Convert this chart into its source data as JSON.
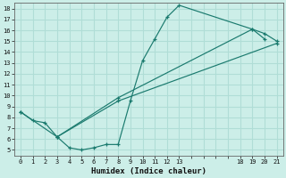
{
  "xlabel": "Humidex (Indice chaleur)",
  "bg_color": "#cceee8",
  "grid_color": "#b0ddd6",
  "line_color": "#1a7a6e",
  "xlim": [
    -0.5,
    21.5
  ],
  "ylim": [
    4.5,
    18.5
  ],
  "xtick_labels": [
    "0",
    "1",
    "2",
    "3",
    "4",
    "5",
    "6",
    "7",
    "8",
    "9",
    "10",
    "11",
    "12",
    "13",
    "",
    "",
    "",
    "",
    "18",
    "19",
    "20",
    "21"
  ],
  "xtick_pos": [
    0,
    1,
    2,
    3,
    4,
    5,
    6,
    7,
    8,
    9,
    10,
    11,
    12,
    13,
    14,
    15,
    16,
    17,
    18,
    19,
    20,
    21
  ],
  "ytick_pos": [
    5,
    6,
    7,
    8,
    9,
    10,
    11,
    12,
    13,
    14,
    15,
    16,
    17,
    18
  ],
  "line1_x": [
    0,
    1,
    2,
    3,
    4,
    5,
    6,
    7,
    8,
    9,
    10,
    11,
    12,
    13,
    19,
    20
  ],
  "line1_y": [
    8.5,
    7.7,
    7.5,
    6.2,
    5.2,
    5.0,
    5.2,
    5.5,
    5.5,
    9.5,
    13.2,
    15.2,
    17.2,
    18.3,
    16.1,
    15.2
  ],
  "line2_x": [
    0,
    3,
    8,
    19,
    20,
    21
  ],
  "line2_y": [
    8.5,
    6.2,
    9.8,
    16.1,
    15.7,
    15.0
  ],
  "line3_x": [
    3,
    8,
    21
  ],
  "line3_y": [
    6.2,
    9.5,
    14.8
  ]
}
